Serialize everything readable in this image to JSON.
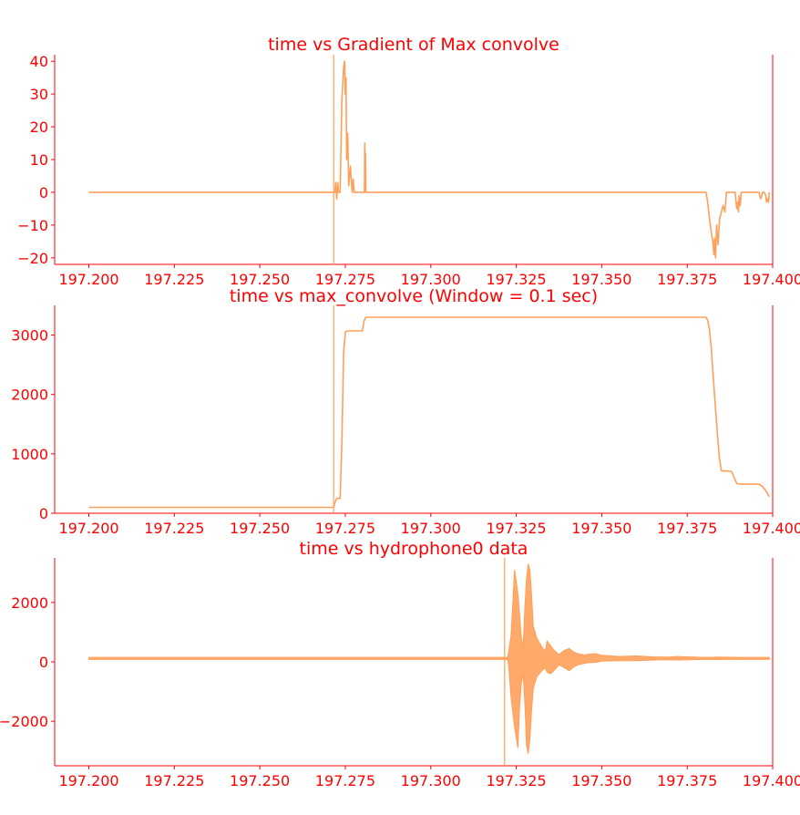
{
  "colors": {
    "text": "#ff0000",
    "axis": "#ff0000",
    "series": "#ffa05a",
    "vline": "#ffa05a"
  },
  "chart_data": [
    {
      "type": "line",
      "title": "time vs Gradient of Max convolve",
      "xlabel": "",
      "ylabel": "",
      "xlim": [
        197.19,
        197.4
      ],
      "ylim": [
        -22,
        42
      ],
      "xticks": [
        197.2,
        197.225,
        197.25,
        197.275,
        197.3,
        197.325,
        197.35,
        197.375,
        197.4
      ],
      "xtick_labels": [
        "197.200",
        "197.225",
        "197.250",
        "197.275",
        "197.300",
        "197.325",
        "197.350",
        "197.375",
        "197.400"
      ],
      "yticks": [
        -20,
        -10,
        0,
        10,
        20,
        30,
        40
      ],
      "ytick_labels": [
        "−20",
        "−10",
        "0",
        "10",
        "20",
        "30",
        "40"
      ],
      "vline": 197.2716,
      "grid": false,
      "series": [
        {
          "style": "line",
          "x": [
            197.2,
            197.272,
            197.2722,
            197.2725,
            197.2728,
            197.273,
            197.2735,
            197.274,
            197.2745,
            197.2748,
            197.275,
            197.2752,
            197.2754,
            197.2757,
            197.276,
            197.2765,
            197.277,
            197.2773,
            197.2776,
            197.278,
            197.2806,
            197.2807,
            197.2808,
            197.2809,
            197.281,
            197.2812,
            197.3805,
            197.381,
            197.3815,
            197.382,
            197.3825,
            197.3828,
            197.383,
            197.3833,
            197.3836,
            197.384,
            197.3845,
            197.385,
            197.3855,
            197.386,
            197.3865,
            197.387,
            197.3875,
            197.388,
            197.389,
            197.3892,
            197.3895,
            197.3898,
            197.39,
            197.3902,
            197.3905,
            197.3908,
            197.391,
            197.396,
            197.3962,
            197.3965,
            197.3968,
            197.397,
            197.3975,
            197.398,
            197.3982,
            197.3985,
            197.3988,
            197.399
          ],
          "y": [
            0,
            0,
            3,
            -2,
            3,
            0,
            0,
            28,
            38,
            40,
            30,
            35,
            10,
            18,
            2,
            8,
            0,
            4,
            0,
            0,
            0,
            15,
            8,
            12,
            0,
            0,
            0,
            -3,
            -8,
            -12,
            -15,
            -19,
            -14,
            -20,
            -10,
            -16,
            -8,
            -6,
            -4,
            -6,
            0,
            0,
            0,
            0,
            0,
            -2,
            -5,
            -3,
            -6,
            -1,
            -4,
            0,
            0,
            0,
            -1,
            -2,
            -1,
            0,
            0,
            -1,
            -3,
            -2,
            -3,
            0
          ]
        }
      ]
    },
    {
      "type": "line",
      "title": "time vs max_convolve (Window = 0.1 sec)",
      "xlabel": "",
      "ylabel": "",
      "xlim": [
        197.19,
        197.4
      ],
      "ylim": [
        0,
        3500
      ],
      "xticks": [
        197.2,
        197.225,
        197.25,
        197.275,
        197.3,
        197.325,
        197.35,
        197.375,
        197.4
      ],
      "xtick_labels": [
        "197.200",
        "197.225",
        "197.250",
        "197.275",
        "197.300",
        "197.325",
        "197.350",
        "197.375",
        "197.400"
      ],
      "yticks": [
        0,
        1000,
        2000,
        3000
      ],
      "ytick_labels": [
        "0",
        "1000",
        "2000",
        "3000"
      ],
      "vline": 197.2716,
      "grid": false,
      "series": [
        {
          "style": "line",
          "x": [
            197.2,
            197.2716,
            197.272,
            197.2725,
            197.2735,
            197.274,
            197.2745,
            197.275,
            197.2755,
            197.28,
            197.2805,
            197.281,
            197.3805,
            197.381,
            197.3815,
            197.382,
            197.3825,
            197.383,
            197.3835,
            197.384,
            197.3845,
            197.385,
            197.3855,
            197.386,
            197.387,
            197.388,
            197.3895,
            197.3905,
            197.396,
            197.397,
            197.398,
            197.399
          ],
          "y": [
            100,
            100,
            180,
            250,
            250,
            1200,
            2700,
            3050,
            3070,
            3070,
            3240,
            3300,
            3300,
            3250,
            3100,
            2800,
            2400,
            2000,
            1600,
            1200,
            900,
            720,
            710,
            710,
            710,
            700,
            500,
            490,
            490,
            450,
            380,
            280
          ]
        }
      ]
    },
    {
      "type": "area",
      "title": "time vs hydrophone0 data",
      "xlabel": "",
      "ylabel": "",
      "xlim": [
        197.19,
        197.4
      ],
      "ylim": [
        -3500,
        3500
      ],
      "xticks": [
        197.2,
        197.225,
        197.25,
        197.275,
        197.3,
        197.325,
        197.35,
        197.375,
        197.4
      ],
      "xtick_labels": [
        "197.200",
        "197.225",
        "197.250",
        "197.275",
        "197.300",
        "197.325",
        "197.350",
        "197.375",
        "197.400"
      ],
      "yticks": [
        -2000,
        0,
        2000
      ],
      "ytick_labels": [
        "−2000",
        "0",
        "2000"
      ],
      "vline": 197.3216,
      "grid": false,
      "series": [
        {
          "style": "envelope",
          "x": [
            197.2,
            197.25,
            197.3,
            197.3225,
            197.3228,
            197.3235,
            197.3245,
            197.3255,
            197.326,
            197.3265,
            197.327,
            197.3275,
            197.328,
            197.3285,
            197.329,
            197.3295,
            197.33,
            197.331,
            197.3325,
            197.3335,
            197.334,
            197.335,
            197.336,
            197.3375,
            197.339,
            197.3405,
            197.3415,
            197.343,
            197.345,
            197.3465,
            197.348,
            197.35,
            197.355,
            197.36,
            197.365,
            197.37,
            197.372,
            197.375,
            197.38,
            197.385,
            197.39,
            197.395,
            197.399
          ],
          "upper": [
            150,
            150,
            150,
            150,
            350,
            900,
            3100,
            2300,
            1600,
            800,
            500,
            1800,
            2800,
            3300,
            3100,
            2200,
            1200,
            800,
            500,
            350,
            700,
            550,
            400,
            250,
            380,
            450,
            350,
            280,
            230,
            260,
            280,
            220,
            180,
            200,
            170,
            160,
            180,
            170,
            150,
            160,
            150,
            150,
            150
          ],
          "lower": [
            80,
            80,
            80,
            80,
            -150,
            -1200,
            -2200,
            -2900,
            -1500,
            -700,
            -400,
            -1400,
            -2800,
            -3100,
            -2600,
            -1600,
            -900,
            -500,
            -300,
            -200,
            -350,
            -400,
            -300,
            -100,
            -200,
            -300,
            -200,
            -100,
            -50,
            -20,
            -20,
            20,
            40,
            40,
            60,
            70,
            60,
            70,
            80,
            80,
            80,
            80,
            80
          ]
        }
      ]
    }
  ]
}
